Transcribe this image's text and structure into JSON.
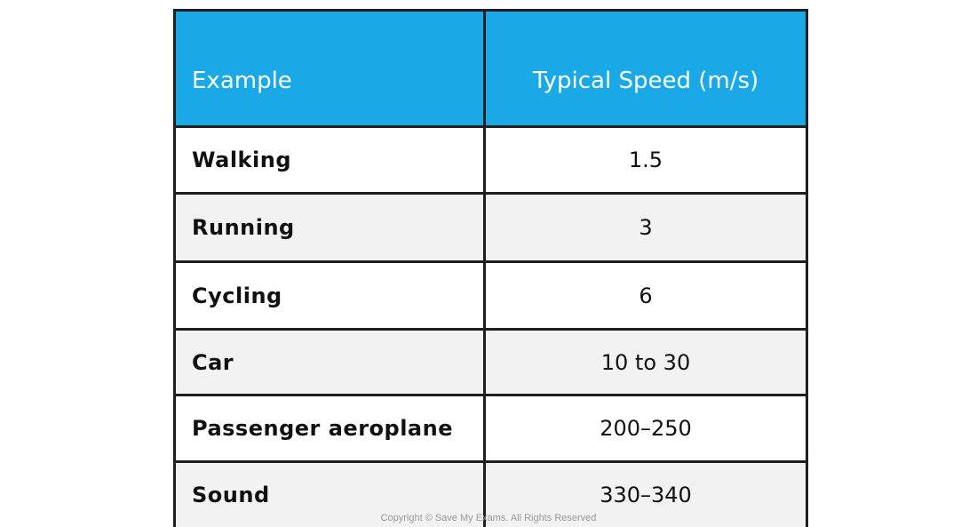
{
  "table": {
    "header": [
      "Example",
      "Typical Speed (m/s)"
    ],
    "rows": [
      [
        "Walking",
        "1.5"
      ],
      [
        "Running",
        "3"
      ],
      [
        "Cycling",
        "6"
      ],
      [
        "Car",
        "10 to 30"
      ],
      [
        "Passenger aeroplane",
        "200–250"
      ],
      [
        "Sound",
        "330–340"
      ]
    ]
  },
  "footer": {
    "copyright": "Copyright © Save My Exams. All Rights Reserved"
  }
}
